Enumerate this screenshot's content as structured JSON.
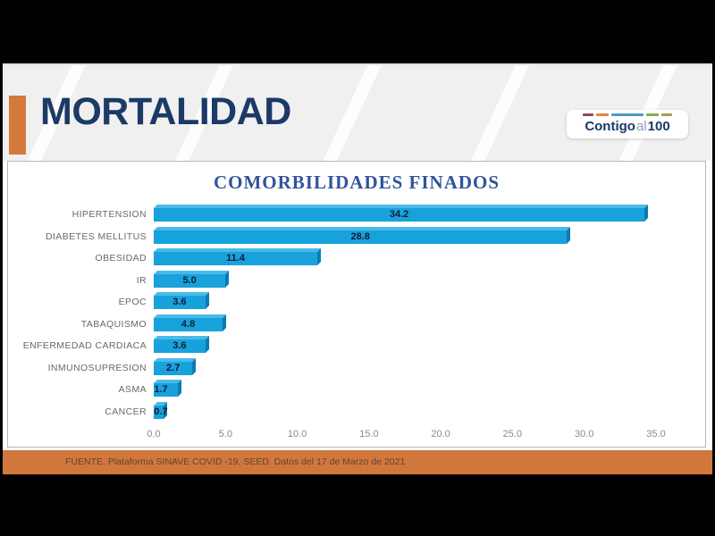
{
  "header": {
    "title": "MORTALIDAD",
    "logo": {
      "contigo": "Contigo",
      "al": "al",
      "hundred": "100",
      "dashes": [
        {
          "color": "#8e4a5a",
          "width": 12
        },
        {
          "color": "#dd8a3d",
          "width": 14
        },
        {
          "color": "#4a9cc1",
          "width": 36
        },
        {
          "color": "#7fae53",
          "width": 14
        },
        {
          "color": "#a9a04b",
          "width": 12
        }
      ]
    }
  },
  "footer": {
    "source": "FUENTE. Plataforma SINAVE COVID -19, SEED. Datos del 17 de Marzo de 2021"
  },
  "colors": {
    "accent_orange": "#d4793a",
    "footer_orange": "#d2773b",
    "title_navy": "#1b3a66",
    "chart_title_blue": "#31549b",
    "bar_face": "#18a2dc",
    "bar_top": "#49bae7",
    "bar_side": "#0d7ab2",
    "value_label": "#101c36"
  },
  "chart_data": {
    "type": "bar",
    "orientation": "horizontal",
    "title": "COMORBILIDADES FINADOS",
    "categories": [
      "HIPERTENSION",
      "DIABETES MELLITUS",
      "OBESIDAD",
      "IR",
      "EPOC",
      "TABAQUISMO",
      "ENFERMEDAD CARDIACA",
      "INMUNOSUPRESION",
      "ASMA",
      "CANCER"
    ],
    "values": [
      34.2,
      28.8,
      11.4,
      5.0,
      3.6,
      4.8,
      3.6,
      2.7,
      1.7,
      0.7
    ],
    "value_labels": [
      "34.2",
      "28.8",
      "11.4",
      "5.0",
      "3.6",
      "4.8",
      "3.6",
      "2.7",
      "1.7",
      "0.7"
    ],
    "xlabel": "",
    "ylabel": "",
    "xlim": [
      0,
      35
    ],
    "x_ticks": [
      0,
      5,
      10,
      15,
      20,
      25,
      30,
      35
    ],
    "x_tick_labels": [
      "0.0",
      "5.0",
      "10.0",
      "15.0",
      "20.0",
      "25.0",
      "30.0",
      "35.0"
    ],
    "grid": false,
    "legend": false,
    "bar_color": "#18a2dc"
  }
}
